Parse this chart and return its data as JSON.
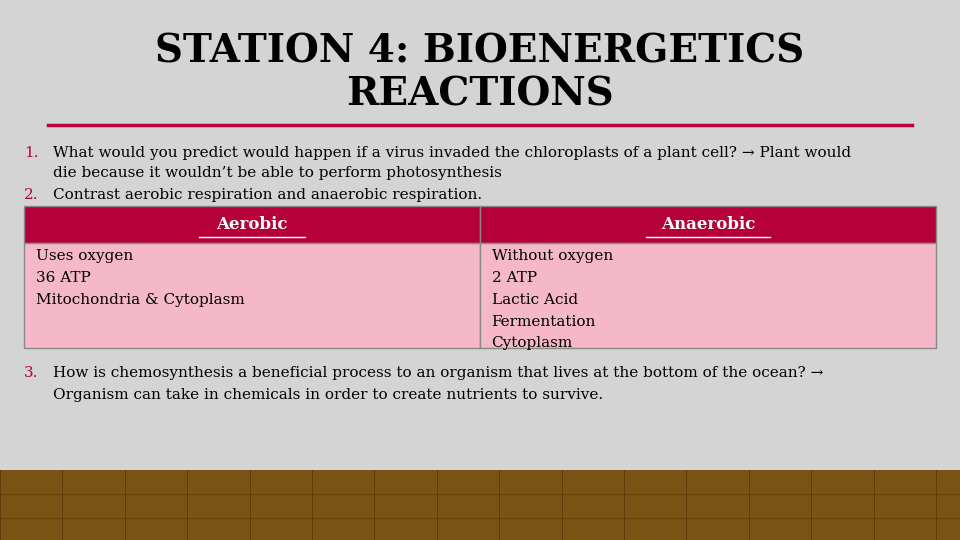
{
  "title_line1": "STATION 4: BIOENERGETICS",
  "title_line2": "REACTIONS",
  "title_underline_color": "#b5003a",
  "bg_color_top": "#d4d4d4",
  "item1_number": "1.",
  "item1_text_line1": "What would you predict would happen if a virus invaded the chloroplasts of a plant cell? → Plant would",
  "item1_text_line2": "die because it wouldn’t be able to perform photosynthesis",
  "item2_number": "2.",
  "item2_text": "Contrast aerobic respiration and anaerobic respiration.",
  "table_header_color": "#b5003a",
  "table_body_color": "#f5b8c8",
  "table_border_color": "#888888",
  "table_header_text_color": "#ffffff",
  "table_body_text_color": "#000000",
  "col1_header": "Aerobic",
  "col2_header": "Anaerobic",
  "col1_body": "Uses oxygen\n36 ATP\nMitochondria & Cytoplasm",
  "col2_body": "Without oxygen\n2 ATP\nLactic Acid\nFermentation\nCytoplasm",
  "item3_number": "3.",
  "item3_text_line1": "How is chemosynthesis a beneficial process to an organism that lives at the bottom of the ocean? →",
  "item3_text_line2": "Organism can take in chemicals in order to create nutrients to survive.",
  "number_color": "#b5003a",
  "text_color": "#000000",
  "title_font_size": 28,
  "body_font_size": 11,
  "table_header_font_size": 12,
  "table_body_font_size": 11
}
